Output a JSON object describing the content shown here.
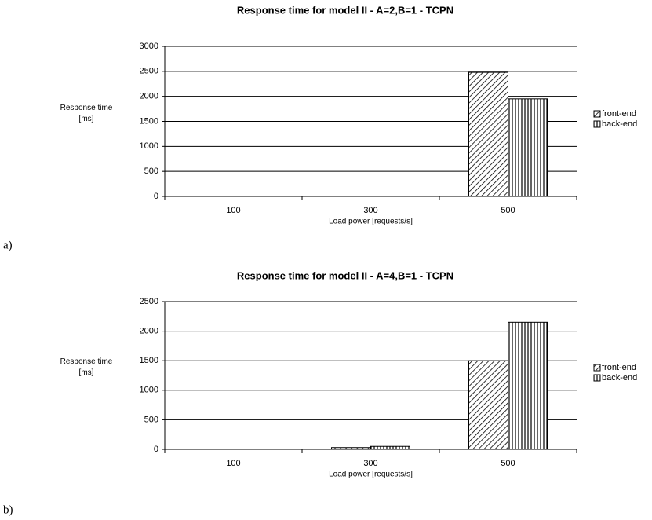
{
  "chart_data": [
    {
      "type": "bar",
      "title": "Response time for model II - A=2,B=1 - TCPN",
      "panel_label": "a)",
      "xlabel": "Load power [requests/s]",
      "ylabel": "Response time [ms]",
      "categories": [
        "100",
        "300",
        "500"
      ],
      "series": [
        {
          "name": "front-end",
          "color": "#000000",
          "pattern": "diagonal",
          "values": [
            0,
            0,
            2480
          ]
        },
        {
          "name": "back-end",
          "color": "#000000",
          "pattern": "vertical",
          "values": [
            0,
            0,
            1950
          ]
        }
      ],
      "ylim": [
        0,
        3000
      ],
      "yticks": [
        0,
        500,
        1000,
        1500,
        2000,
        2500,
        3000
      ],
      "grid": true,
      "legend": "right"
    },
    {
      "type": "bar",
      "title": "Response time for model II - A=4,B=1 - TCPN",
      "panel_label": "b)",
      "xlabel": "Load power [requests/s]",
      "ylabel": "Response time [ms]",
      "categories": [
        "100",
        "300",
        "500"
      ],
      "series": [
        {
          "name": "front-end",
          "color": "#000000",
          "pattern": "diagonal",
          "values": [
            0,
            30,
            1500
          ]
        },
        {
          "name": "back-end",
          "color": "#000000",
          "pattern": "vertical",
          "values": [
            0,
            50,
            2150
          ]
        }
      ],
      "ylim": [
        0,
        2500
      ],
      "yticks": [
        0,
        500,
        1000,
        1500,
        2000,
        2500
      ],
      "grid": true,
      "legend": "right"
    }
  ]
}
